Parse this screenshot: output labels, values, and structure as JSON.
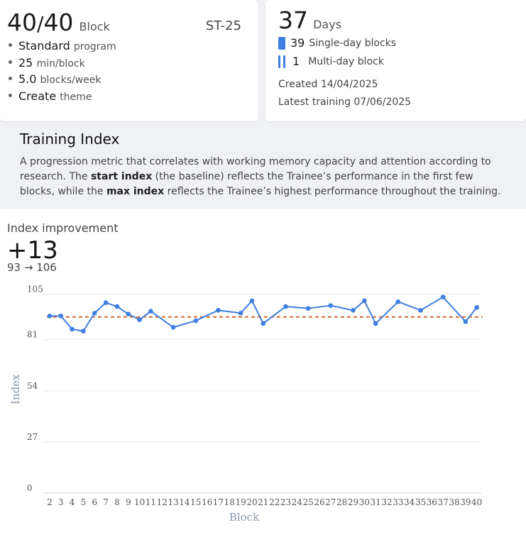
{
  "summary": {
    "block_current": "40",
    "block_sep": "/",
    "block_total": "40",
    "block_unit": "Block",
    "code": "ST-25",
    "stats": [
      {
        "value": "Standard",
        "label": "program"
      },
      {
        "value": "25",
        "label": "min/block"
      },
      {
        "value": "5.0",
        "label": "blocks/week"
      },
      {
        "value": "Create",
        "label": "theme"
      }
    ]
  },
  "days": {
    "value": "37",
    "unit": "Days",
    "single_count": "39",
    "single_label": "Single-day blocks",
    "multi_count": "1",
    "multi_label": "Multi-day block",
    "created": "Created 14/04/2025",
    "latest": "Latest training 07/06/2025"
  },
  "training_index": {
    "title": "Training Index",
    "text_1": "A progression metric that correlates with working memory capacity and attention according to research. The ",
    "bold_1": "start index",
    "text_2": " (the baseline) reflects the Trainee’s performance in the first few blocks, while the ",
    "bold_2": "max index",
    "text_3": " reflects the Trainee’s highest performance throughout the training."
  },
  "improvement": {
    "label": "Index improvement",
    "value": "+13",
    "range": "93 → 106"
  },
  "colors": {
    "line": "#3e7fe0",
    "baseline": "#e0662e",
    "grid": "#e6e6e6"
  },
  "chart_data": {
    "type": "line",
    "xlabel": "Block",
    "ylabel": "Index",
    "ylim": [
      0,
      106
    ],
    "yticks": [
      0,
      27,
      54,
      81,
      105
    ],
    "baseline": 93,
    "x": [
      2,
      3,
      4,
      5,
      6,
      7,
      8,
      9,
      10,
      11,
      12,
      13,
      14,
      15,
      16,
      17,
      18,
      19,
      20,
      21,
      22,
      23,
      24,
      25,
      26,
      27,
      28,
      29,
      30,
      31,
      32,
      33,
      34,
      35,
      36,
      37,
      38,
      39,
      40
    ],
    "series": [
      {
        "x": [
          2,
          3,
          4,
          5,
          6,
          7,
          8,
          9,
          10,
          11,
          13,
          15,
          17,
          19,
          20,
          21,
          23,
          25,
          27,
          29,
          30,
          31,
          33,
          35,
          37,
          39,
          40
        ],
        "values": [
          93.5,
          93.5,
          86.5,
          85.5,
          95,
          100.5,
          98.5,
          94.5,
          91.5,
          96,
          87.5,
          91,
          96.5,
          95,
          101.5,
          89.5,
          98.5,
          97.5,
          99,
          96.5,
          101.5,
          89.5,
          101,
          96.5,
          103.5,
          90.5,
          98
        ]
      }
    ],
    "grid": true,
    "legend": "none"
  }
}
